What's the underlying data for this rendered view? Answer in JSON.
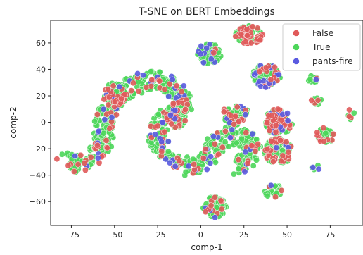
{
  "chart_data": {
    "type": "scatter",
    "title": "T-SNE on BERT Embeddings",
    "xlabel": "comp-1",
    "ylabel": "comp-2",
    "xlim": [
      -87,
      94
    ],
    "ylim": [
      -78,
      77
    ],
    "xticks": [
      -75,
      -50,
      -25,
      0,
      25,
      50,
      75
    ],
    "yticks": [
      -60,
      -40,
      -20,
      0,
      20,
      40,
      60
    ],
    "x_tick_labels": [
      "−75",
      "−50",
      "−25",
      "0",
      "25",
      "50",
      "75"
    ],
    "y_tick_labels": [
      "−60",
      "−40",
      "−20",
      "0",
      "20",
      "40",
      "60"
    ],
    "grid": false,
    "legend_position": "top-right",
    "series": [
      {
        "name": "False",
        "color": "#e05a5a"
      },
      {
        "name": "True",
        "color": "#4dd65a"
      },
      {
        "name": "pants-fire",
        "color": "#5a5ae0"
      }
    ],
    "clusters": [
      {
        "shape": "worm",
        "path": [
          [
            -78,
            -30
          ],
          [
            -68,
            -30
          ],
          [
            -60,
            -25
          ],
          [
            -56,
            -15
          ],
          [
            -56,
            -2
          ],
          [
            -54,
            10
          ],
          [
            -48,
            20
          ],
          [
            -40,
            28
          ],
          [
            -30,
            32
          ],
          [
            -20,
            30
          ],
          [
            -12,
            22
          ],
          [
            -8,
            15
          ],
          [
            -14,
            8
          ],
          [
            -22,
            2
          ],
          [
            -26,
            -8
          ],
          [
            -24,
            -20
          ],
          [
            -18,
            -30
          ],
          [
            -8,
            -34
          ],
          [
            2,
            -30
          ],
          [
            6,
            -22
          ],
          [
            10,
            -14
          ],
          [
            16,
            -10
          ],
          [
            22,
            -10
          ],
          [
            28,
            -14
          ],
          [
            30,
            -22
          ],
          [
            26,
            -30
          ],
          [
            20,
            -36
          ]
        ],
        "radius": 6,
        "count": 700,
        "mix": [
          0.15,
          0.78,
          0.07
        ]
      },
      {
        "center": [
          -14,
          6
        ],
        "rx": 6,
        "ry": 10,
        "count": 70,
        "mix": [
          0.2,
          0.72,
          0.08
        ]
      },
      {
        "center": [
          -50,
          22
        ],
        "rx": 6,
        "ry": 8,
        "count": 60,
        "mix": [
          0.15,
          0.8,
          0.05
        ]
      },
      {
        "center": [
          20,
          5
        ],
        "rx": 8,
        "ry": 8,
        "count": 80,
        "mix": [
          0.18,
          0.75,
          0.07
        ]
      },
      {
        "center": [
          28,
          66
        ],
        "rx": 8,
        "ry": 7,
        "count": 75,
        "mix": [
          0.4,
          0.58,
          0.02
        ]
      },
      {
        "center": [
          5,
          52
        ],
        "rx": 7,
        "ry": 8,
        "count": 80,
        "mix": [
          0.05,
          0.85,
          0.1
        ]
      },
      {
        "center": [
          38,
          35
        ],
        "rx": 8,
        "ry": 9,
        "count": 90,
        "mix": [
          0.25,
          0.6,
          0.15
        ]
      },
      {
        "center": [
          45,
          0
        ],
        "rx": 8,
        "ry": 10,
        "count": 95,
        "mix": [
          0.35,
          0.55,
          0.1
        ]
      },
      {
        "center": [
          45,
          -22
        ],
        "rx": 8,
        "ry": 10,
        "count": 95,
        "mix": [
          0.35,
          0.55,
          0.1
        ]
      },
      {
        "center": [
          42,
          -52
        ],
        "rx": 5,
        "ry": 5,
        "count": 30,
        "mix": [
          0.05,
          0.85,
          0.1
        ]
      },
      {
        "center": [
          8,
          -64
        ],
        "rx": 7,
        "ry": 8,
        "count": 75,
        "mix": [
          0.15,
          0.8,
          0.05
        ]
      },
      {
        "center": [
          65,
          33
        ],
        "rx": 3,
        "ry": 3,
        "count": 10,
        "mix": [
          0.1,
          0.8,
          0.1
        ]
      },
      {
        "center": [
          67,
          16
        ],
        "rx": 3,
        "ry": 3,
        "count": 12,
        "mix": [
          0.25,
          0.75,
          0.0
        ]
      },
      {
        "center": [
          72,
          -10
        ],
        "rx": 5,
        "ry": 6,
        "count": 30,
        "mix": [
          0.35,
          0.6,
          0.05
        ]
      },
      {
        "center": [
          67,
          -34
        ],
        "rx": 3,
        "ry": 2,
        "count": 8,
        "mix": [
          0.0,
          0.6,
          0.4
        ]
      },
      {
        "center": [
          87,
          6
        ],
        "rx": 2,
        "ry": 4,
        "count": 6,
        "mix": [
          0.4,
          0.6,
          0.0
        ]
      }
    ]
  }
}
